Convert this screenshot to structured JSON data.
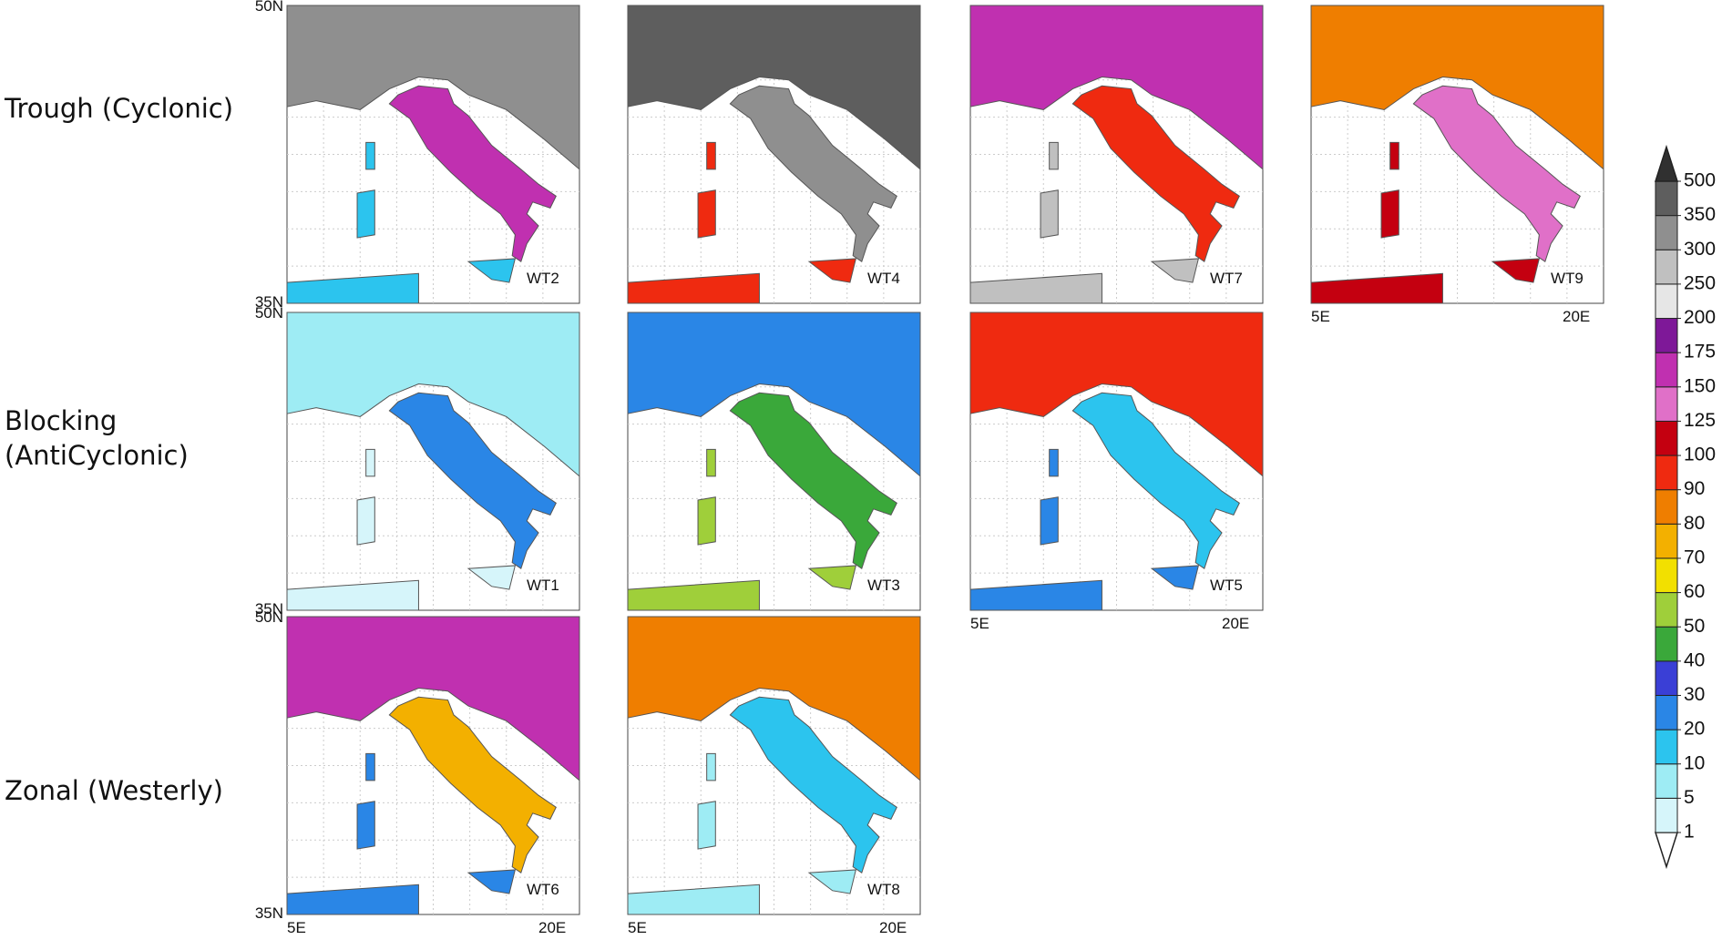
{
  "rows": [
    {
      "label": [
        "Trough (Cyclonic)"
      ],
      "panels": [
        "WT2",
        "WT4",
        "WT7",
        "WT9"
      ]
    },
    {
      "label": [
        "Blocking",
        "(AntiCyclonic)"
      ],
      "panels": [
        "WT1",
        "WT3",
        "WT5"
      ]
    },
    {
      "label": [
        "Zonal (Westerly)"
      ],
      "panels": [
        "WT6",
        "WT8"
      ]
    }
  ],
  "lat_labels": [
    "50N",
    "35N"
  ],
  "lon_labels": [
    "5E",
    "20E"
  ],
  "colorbar": {
    "levels": [
      1,
      5,
      10,
      20,
      30,
      40,
      50,
      60,
      70,
      80,
      90,
      100,
      125,
      150,
      175,
      200,
      250,
      300,
      350,
      500
    ],
    "colors": [
      "#ffffff",
      "#d6f5fa",
      "#9eecf4",
      "#2cc4ee",
      "#2a86e6",
      "#3a3fd6",
      "#3aa83a",
      "#9fcf3a",
      "#f2e000",
      "#f3b000",
      "#ef7e00",
      "#ef2a10",
      "#c40010",
      "#e070c8",
      "#c030b0",
      "#7e1898",
      "#e6e6e6",
      "#c0c0c0",
      "#8f8f8f",
      "#5e5e5e",
      "#303030"
    ]
  }
}
